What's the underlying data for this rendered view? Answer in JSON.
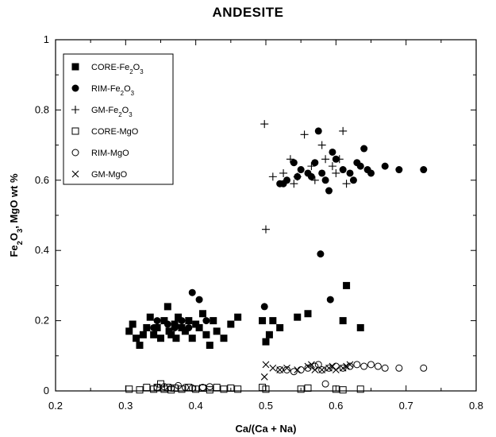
{
  "chart_data": {
    "type": "scatter",
    "title": "ANDESITE",
    "xlabel": "Ca/(Ca + Na)",
    "ylabel_parts": [
      "Fe",
      "2",
      "O",
      "3",
      ", MgO  wt %"
    ],
    "xlim": [
      0.2,
      0.8
    ],
    "ylim": [
      0,
      1
    ],
    "xticks": [
      "0.2",
      "0.3",
      "0.4",
      "0.5",
      "0.6",
      "0.7",
      "0.8"
    ],
    "yticks": [
      "0",
      "0.2",
      "0.4",
      "0.6",
      "0.8",
      "1"
    ],
    "legend_position": "top-left",
    "series": [
      {
        "name_parts": [
          "CORE-Fe",
          "2",
          "O",
          "3"
        ],
        "marker": "filled-square",
        "points": [
          [
            0.305,
            0.17
          ],
          [
            0.31,
            0.19
          ],
          [
            0.315,
            0.15
          ],
          [
            0.32,
            0.13
          ],
          [
            0.325,
            0.16
          ],
          [
            0.33,
            0.18
          ],
          [
            0.335,
            0.21
          ],
          [
            0.34,
            0.16
          ],
          [
            0.345,
            0.18
          ],
          [
            0.35,
            0.15
          ],
          [
            0.355,
            0.2
          ],
          [
            0.36,
            0.24
          ],
          [
            0.362,
            0.17
          ],
          [
            0.365,
            0.16
          ],
          [
            0.37,
            0.19
          ],
          [
            0.372,
            0.15
          ],
          [
            0.375,
            0.21
          ],
          [
            0.38,
            0.18
          ],
          [
            0.385,
            0.17
          ],
          [
            0.39,
            0.2
          ],
          [
            0.395,
            0.15
          ],
          [
            0.4,
            0.19
          ],
          [
            0.405,
            0.18
          ],
          [
            0.41,
            0.22
          ],
          [
            0.415,
            0.16
          ],
          [
            0.42,
            0.13
          ],
          [
            0.425,
            0.2
          ],
          [
            0.43,
            0.17
          ],
          [
            0.44,
            0.15
          ],
          [
            0.45,
            0.19
          ],
          [
            0.46,
            0.21
          ],
          [
            0.495,
            0.2
          ],
          [
            0.5,
            0.14
          ],
          [
            0.505,
            0.16
          ],
          [
            0.51,
            0.2
          ],
          [
            0.52,
            0.18
          ],
          [
            0.545,
            0.21
          ],
          [
            0.56,
            0.22
          ],
          [
            0.61,
            0.2
          ],
          [
            0.615,
            0.3
          ],
          [
            0.635,
            0.18
          ]
        ]
      },
      {
        "name_parts": [
          "RIM-Fe",
          "2",
          "O",
          "3"
        ],
        "marker": "filled-circle",
        "points": [
          [
            0.34,
            0.18
          ],
          [
            0.345,
            0.2
          ],
          [
            0.36,
            0.19
          ],
          [
            0.37,
            0.18
          ],
          [
            0.38,
            0.2
          ],
          [
            0.39,
            0.18
          ],
          [
            0.395,
            0.28
          ],
          [
            0.405,
            0.26
          ],
          [
            0.415,
            0.2
          ],
          [
            0.498,
            0.24
          ],
          [
            0.52,
            0.59
          ],
          [
            0.525,
            0.59
          ],
          [
            0.53,
            0.6
          ],
          [
            0.54,
            0.65
          ],
          [
            0.545,
            0.61
          ],
          [
            0.55,
            0.63
          ],
          [
            0.56,
            0.62
          ],
          [
            0.565,
            0.61
          ],
          [
            0.57,
            0.65
          ],
          [
            0.575,
            0.74
          ],
          [
            0.578,
            0.39
          ],
          [
            0.58,
            0.62
          ],
          [
            0.585,
            0.6
          ],
          [
            0.59,
            0.57
          ],
          [
            0.592,
            0.26
          ],
          [
            0.595,
            0.68
          ],
          [
            0.6,
            0.66
          ],
          [
            0.61,
            0.63
          ],
          [
            0.62,
            0.62
          ],
          [
            0.625,
            0.6
          ],
          [
            0.63,
            0.65
          ],
          [
            0.635,
            0.64
          ],
          [
            0.64,
            0.69
          ],
          [
            0.645,
            0.63
          ],
          [
            0.65,
            0.62
          ],
          [
            0.67,
            0.64
          ],
          [
            0.69,
            0.63
          ],
          [
            0.725,
            0.63
          ]
        ]
      },
      {
        "name_parts": [
          "GM-Fe",
          "2",
          "O",
          "3"
        ],
        "marker": "plus",
        "points": [
          [
            0.498,
            0.76
          ],
          [
            0.5,
            0.46
          ],
          [
            0.51,
            0.61
          ],
          [
            0.525,
            0.62
          ],
          [
            0.535,
            0.66
          ],
          [
            0.54,
            0.59
          ],
          [
            0.545,
            0.61
          ],
          [
            0.555,
            0.73
          ],
          [
            0.565,
            0.64
          ],
          [
            0.57,
            0.6
          ],
          [
            0.58,
            0.7
          ],
          [
            0.585,
            0.66
          ],
          [
            0.595,
            0.64
          ],
          [
            0.6,
            0.62
          ],
          [
            0.605,
            0.66
          ],
          [
            0.61,
            0.74
          ],
          [
            0.615,
            0.59
          ]
        ]
      },
      {
        "name_parts": [
          "CORE-MgO"
        ],
        "marker": "open-square",
        "points": [
          [
            0.305,
            0.005
          ],
          [
            0.32,
            0.003
          ],
          [
            0.33,
            0.01
          ],
          [
            0.34,
            0.005
          ],
          [
            0.345,
            0.01
          ],
          [
            0.35,
            0.02
          ],
          [
            0.355,
            0.005
          ],
          [
            0.36,
            0.01
          ],
          [
            0.365,
            0.003
          ],
          [
            0.37,
            0.008
          ],
          [
            0.38,
            0.005
          ],
          [
            0.39,
            0.01
          ],
          [
            0.4,
            0.005
          ],
          [
            0.41,
            0.008
          ],
          [
            0.42,
            0.003
          ],
          [
            0.43,
            0.01
          ],
          [
            0.44,
            0.005
          ],
          [
            0.45,
            0.008
          ],
          [
            0.46,
            0.005
          ],
          [
            0.495,
            0.01
          ],
          [
            0.5,
            0.005
          ],
          [
            0.55,
            0.005
          ],
          [
            0.56,
            0.008
          ],
          [
            0.6,
            0.005
          ],
          [
            0.61,
            0.003
          ],
          [
            0.635,
            0.005
          ]
        ]
      },
      {
        "name_parts": [
          "RIM-MgO"
        ],
        "marker": "open-circle",
        "points": [
          [
            0.345,
            0.01
          ],
          [
            0.355,
            0.012
          ],
          [
            0.365,
            0.008
          ],
          [
            0.375,
            0.015
          ],
          [
            0.385,
            0.01
          ],
          [
            0.395,
            0.008
          ],
          [
            0.41,
            0.01
          ],
          [
            0.42,
            0.012
          ],
          [
            0.52,
            0.06
          ],
          [
            0.53,
            0.06
          ],
          [
            0.54,
            0.055
          ],
          [
            0.55,
            0.06
          ],
          [
            0.56,
            0.065
          ],
          [
            0.57,
            0.07
          ],
          [
            0.575,
            0.075
          ],
          [
            0.58,
            0.06
          ],
          [
            0.585,
            0.02
          ],
          [
            0.59,
            0.065
          ],
          [
            0.6,
            0.07
          ],
          [
            0.61,
            0.065
          ],
          [
            0.62,
            0.07
          ],
          [
            0.63,
            0.075
          ],
          [
            0.64,
            0.07
          ],
          [
            0.65,
            0.075
          ],
          [
            0.66,
            0.07
          ],
          [
            0.67,
            0.065
          ],
          [
            0.69,
            0.065
          ],
          [
            0.725,
            0.065
          ]
        ]
      },
      {
        "name_parts": [
          "GM-MgO"
        ],
        "marker": "x",
        "points": [
          [
            0.498,
            0.04
          ],
          [
            0.5,
            0.075
          ],
          [
            0.51,
            0.065
          ],
          [
            0.52,
            0.06
          ],
          [
            0.53,
            0.065
          ],
          [
            0.545,
            0.06
          ],
          [
            0.56,
            0.07
          ],
          [
            0.565,
            0.075
          ],
          [
            0.57,
            0.06
          ],
          [
            0.58,
            0.06
          ],
          [
            0.59,
            0.065
          ],
          [
            0.595,
            0.07
          ],
          [
            0.6,
            0.06
          ],
          [
            0.61,
            0.065
          ],
          [
            0.615,
            0.07
          ],
          [
            0.62,
            0.075
          ]
        ]
      }
    ]
  }
}
